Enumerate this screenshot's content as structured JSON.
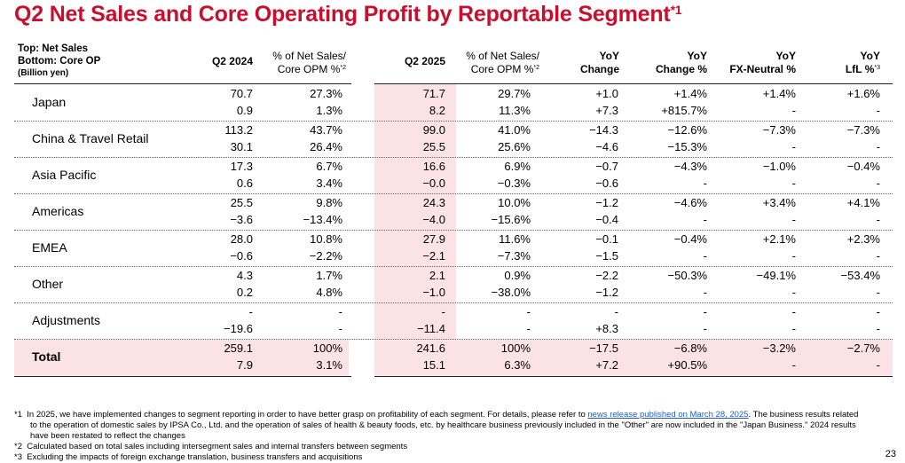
{
  "title": "Q2 Net Sales and Core Operating Profit by Reportable Segment",
  "title_note": "*1",
  "header": {
    "topleft_line1": "Top: Net Sales",
    "topleft_line2": "Bottom: Core OP",
    "topleft_line3": "(Billion yen)",
    "q2024": "Q2 2024",
    "pct1_line1": "% of Net Sales/",
    "pct1_line2": "Core OPM %",
    "pct1_note": "*2",
    "q2025": "Q2 2025",
    "pct2_line1": "% of Net Sales/",
    "pct2_line2": "Core OPM %",
    "pct2_note": "*2",
    "yoy_line1": "YoY",
    "yoy_change": "Change",
    "yoy_change_pct": "Change %",
    "fx_neutral": "FX-Neutral %",
    "lfl": "LfL %",
    "lfl_note": "*3"
  },
  "rows": [
    {
      "segment": "Japan",
      "bold": false,
      "top": [
        "70.7",
        "27.3%",
        "71.7",
        "29.7%",
        "+1.0",
        "+1.4%",
        "+1.4%",
        "+1.6%"
      ],
      "bottom": [
        "0.9",
        "1.3%",
        "8.2",
        "11.3%",
        "+7.3",
        "+815.7%",
        "-",
        "-"
      ]
    },
    {
      "segment": "China & Travel Retail",
      "bold": false,
      "top": [
        "113.2",
        "43.7%",
        "99.0",
        "41.0%",
        "−14.3",
        "−12.6%",
        "−7.3%",
        "−7.3%"
      ],
      "bottom": [
        "30.1",
        "26.4%",
        "25.5",
        "25.6%",
        "−4.6",
        "−15.3%",
        "-",
        "-"
      ]
    },
    {
      "segment": "Asia Pacific",
      "bold": false,
      "top": [
        "17.3",
        "6.7%",
        "16.6",
        "6.9%",
        "−0.7",
        "−4.3%",
        "−1.0%",
        "−0.4%"
      ],
      "bottom": [
        "0.6",
        "3.4%",
        "−0.0",
        "−0.3%",
        "−0.6",
        "-",
        "-",
        "-"
      ]
    },
    {
      "segment": "Americas",
      "bold": false,
      "top": [
        "25.5",
        "9.8%",
        "24.3",
        "10.0%",
        "−1.2",
        "−4.6%",
        "+3.4%",
        "+4.1%"
      ],
      "bottom": [
        "−3.6",
        "−13.4%",
        "−4.0",
        "−15.6%",
        "−0.4",
        "-",
        "-",
        "-"
      ]
    },
    {
      "segment": "EMEA",
      "bold": false,
      "top": [
        "28.0",
        "10.8%",
        "27.9",
        "11.6%",
        "−0.1",
        "−0.4%",
        "+2.1%",
        "+2.3%"
      ],
      "bottom": [
        "−0.6",
        "−2.2%",
        "−2.1",
        "−7.3%",
        "−1.5",
        "-",
        "-",
        "-"
      ]
    },
    {
      "segment": "Other",
      "bold": false,
      "top": [
        "4.3",
        "1.7%",
        "2.1",
        "0.9%",
        "−2.2",
        "−50.3%",
        "−49.1%",
        "−53.4%"
      ],
      "bottom": [
        "0.2",
        "4.8%",
        "−1.0",
        "−38.0%",
        "−1.2",
        "-",
        "-",
        "-"
      ]
    },
    {
      "segment": "Adjustments",
      "bold": false,
      "top": [
        "-",
        "-",
        "-",
        "-",
        "-",
        "-",
        "-",
        "-"
      ],
      "bottom": [
        "−19.6",
        "-",
        "−11.4",
        "-",
        "+8.3",
        "-",
        "-",
        "-"
      ]
    },
    {
      "segment": "Total",
      "bold": true,
      "top": [
        "259.1",
        "100%",
        "241.6",
        "100%",
        "−17.5",
        "−6.8%",
        "−3.2%",
        "−2.7%"
      ],
      "bottom": [
        "7.9",
        "3.1%",
        "15.1",
        "6.3%",
        "+7.2",
        "+90.5%",
        "-",
        "-"
      ]
    }
  ],
  "footnotes": {
    "n1_marker": "*1",
    "n1_line1_a": "In 2025, we have implemented changes to segment reporting in order to have better grasp on profitability of each segment. For details, please refer to ",
    "n1_link": "news release published on March 28, 2025",
    "n1_line1_b": ".  The business results related",
    "n1_line2": "to the operation of domestic sales by IPSA Co., Ltd. and the operation of sales of health & beauty foods, etc. by healthcare business previously included in the \"Other\" are now included in the \"Japan Business.\" 2024 results",
    "n1_line3": "have been restated to reflect the changes",
    "n2_marker": "*2",
    "n2": "Calculated based on total sales including intersegment sales and internal transfers between segments",
    "n3_marker": "*3",
    "n3": "Excluding the impacts of foreign exchange translation, business transfers and acquisitions"
  },
  "page_number": "23",
  "colors": {
    "accent": "#c8102e",
    "band": "#fbe3e5"
  }
}
